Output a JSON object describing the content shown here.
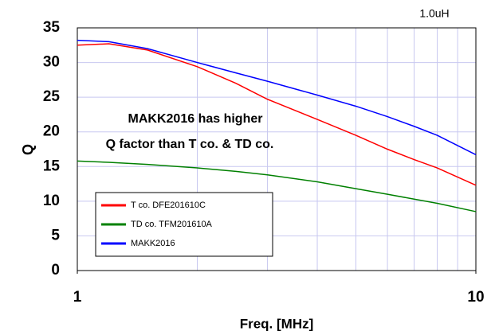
{
  "chart_data": {
    "type": "line",
    "x": [
      1,
      1.2,
      1.5,
      2,
      2.5,
      3,
      4,
      5,
      6,
      7,
      8,
      10
    ],
    "series": [
      {
        "name": "T co. DFE201610C",
        "color": "#ff0000",
        "values": [
          32.5,
          32.7,
          31.8,
          29.4,
          27,
          24.7,
          21.8,
          19.5,
          17.5,
          16,
          14.8,
          12.3
        ]
      },
      {
        "name": "TD co. TFM201610A",
        "color": "#008000",
        "values": [
          15.8,
          15.6,
          15.3,
          14.8,
          14.3,
          13.8,
          12.8,
          11.8,
          11,
          10.3,
          9.7,
          8.5
        ]
      },
      {
        "name": "MAKK2016",
        "color": "#0000ff",
        "values": [
          33.2,
          33,
          32,
          30,
          28.5,
          27.3,
          25.3,
          23.7,
          22.2,
          20.8,
          19.5,
          16.7
        ]
      }
    ],
    "xlabel": "Freq. [MHz]",
    "ylabel": "Q",
    "xlim": [
      1,
      10
    ],
    "xticks": [
      1,
      10
    ],
    "xminor": [
      2,
      3,
      4,
      5,
      6,
      7,
      8,
      9
    ],
    "log_x": true,
    "ylim": [
      0,
      35
    ],
    "yticks": [
      0,
      5,
      10,
      15,
      20,
      25,
      30,
      35
    ],
    "grid": true,
    "annotations": [
      "1.0uH",
      "MAKK2016 has higher",
      "Q factor than T co. & TD co."
    ],
    "legend": "lower left"
  }
}
